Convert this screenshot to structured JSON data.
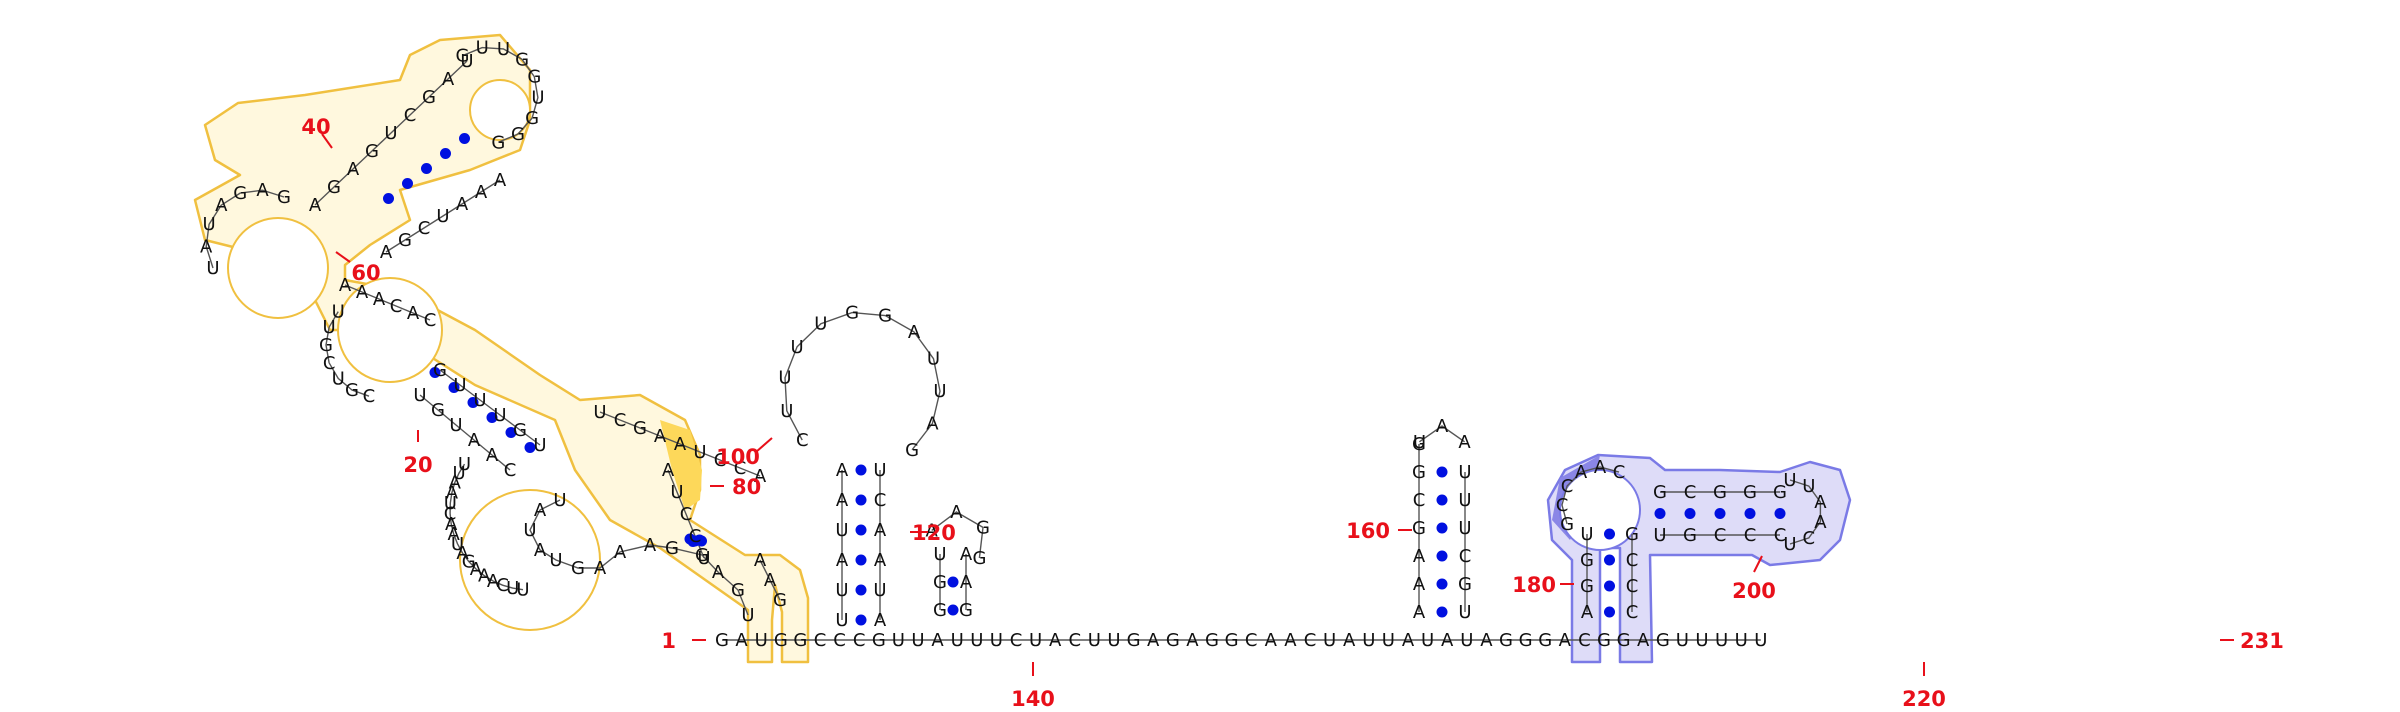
{
  "colors": {
    "pair_dot": "#0010e0",
    "position_label": "#e8101a",
    "domain_a_outline": "#f0c040",
    "domain_a_fill": "#fff8de",
    "domain_a_highlight": "#fdd85a",
    "domain_b_outline": "#7a7ae6",
    "domain_b_fill": "#dedcf8",
    "domain_b_highlight": "#8a86e6"
  },
  "position_labels": [
    "1",
    "20",
    "40",
    "60",
    "80",
    "100",
    "120",
    "140",
    "160",
    "180",
    "200",
    "220",
    "231"
  ],
  "bases": {
    "s_start": "G A U G G C C C G U U A U U U C U A C U U G A G A G G C A A C U A U U A U A U A G G G A C G G A G U U U U U",
    "stem_A_5": "U G A G G A A A G U A U A U",
    "stem_A_3": "A U C C U",
    "loop_A": "A A G",
    "stem_D5": "U C G A A U C C A",
    "stem_D_loop": "A A A",
    "big_loop": "U U A A U C A A U A G A A A C U U",
    "stem_E": "G U U U G U U G U A A C",
    "upper_arm": "A G A G U C G A U",
    "top_loop": "G U U G G U G G G",
    "upper_return": "A A A U C G A",
    "left_loop": "G A G A U A U",
    "mid_side": "A A A C A C",
    "mid_loop": "U U G C U G C",
    "stem_ext_5": "A A U A U U U A U U",
    "hairpin_loop": "C U U U U G G A U U A G",
    "stem_ext_3": "A U A A C U",
    "small_stem": "G G U C C G A A G C",
    "h160_5": "A A A G C G G",
    "h160_loop": "U A A",
    "h160_3": "U G C U U U",
    "h180_5": "A G G U G C A A",
    "h180_loop": "C G G G U U A A C",
    "h180_3": "C C C G U U C C"
  }
}
